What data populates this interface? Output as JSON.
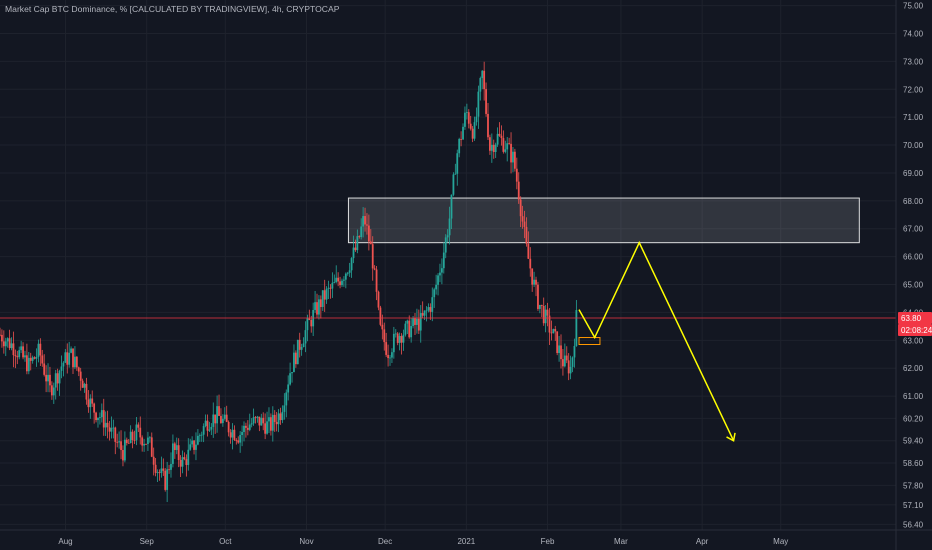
{
  "chart_data": {
    "type": "candlestick",
    "title": "Market Cap BTC Dominance, % [CALCULATED BY TRADINGVIEW], 4h, CRYPTOCAP",
    "ylim": [
      56.2,
      75.2
    ],
    "y_ticks": [
      "75.00",
      "74.00",
      "73.00",
      "72.00",
      "71.00",
      "70.00",
      "69.00",
      "68.00",
      "67.00",
      "66.00",
      "65.00",
      "64.00",
      "63.00",
      "62.00",
      "61.00",
      "60.20",
      "59.40",
      "58.60",
      "57.80",
      "57.10",
      "56.40"
    ],
    "x_ticks": [
      "Aug",
      "Sep",
      "Oct",
      "Nov",
      "Dec",
      "2021",
      "Feb",
      "Mar",
      "Apr",
      "May"
    ],
    "price_series": [
      {
        "date": "2020-07-07",
        "value": 63.2
      },
      {
        "date": "2020-07-12",
        "value": 62.8
      },
      {
        "date": "2020-07-18",
        "value": 62.1
      },
      {
        "date": "2020-07-22",
        "value": 62.6
      },
      {
        "date": "2020-07-26",
        "value": 61.2
      },
      {
        "date": "2020-07-31",
        "value": 62.2
      },
      {
        "date": "2020-08-03",
        "value": 62.5
      },
      {
        "date": "2020-08-07",
        "value": 61.7
      },
      {
        "date": "2020-08-11",
        "value": 60.6
      },
      {
        "date": "2020-08-16",
        "value": 60.1
      },
      {
        "date": "2020-08-20",
        "value": 59.4
      },
      {
        "date": "2020-08-23",
        "value": 59.0
      },
      {
        "date": "2020-08-28",
        "value": 59.7
      },
      {
        "date": "2020-09-02",
        "value": 59.3
      },
      {
        "date": "2020-09-05",
        "value": 58.4
      },
      {
        "date": "2020-09-08",
        "value": 57.9
      },
      {
        "date": "2020-09-11",
        "value": 59.1
      },
      {
        "date": "2020-09-15",
        "value": 58.6
      },
      {
        "date": "2020-09-20",
        "value": 59.4
      },
      {
        "date": "2020-09-24",
        "value": 60.1
      },
      {
        "date": "2020-09-28",
        "value": 60.3
      },
      {
        "date": "2020-10-02",
        "value": 59.9
      },
      {
        "date": "2020-10-06",
        "value": 59.6
      },
      {
        "date": "2020-10-10",
        "value": 60.0
      },
      {
        "date": "2020-10-14",
        "value": 60.1
      },
      {
        "date": "2020-10-18",
        "value": 59.9
      },
      {
        "date": "2020-10-22",
        "value": 60.4
      },
      {
        "date": "2020-10-26",
        "value": 62.0
      },
      {
        "date": "2020-10-30",
        "value": 63.0
      },
      {
        "date": "2020-11-04",
        "value": 64.0
      },
      {
        "date": "2020-11-08",
        "value": 64.6
      },
      {
        "date": "2020-11-12",
        "value": 65.0
      },
      {
        "date": "2020-11-16",
        "value": 65.5
      },
      {
        "date": "2020-11-20",
        "value": 66.3
      },
      {
        "date": "2020-11-23",
        "value": 67.4
      },
      {
        "date": "2020-11-26",
        "value": 66.1
      },
      {
        "date": "2020-11-29",
        "value": 63.4
      },
      {
        "date": "2020-12-02",
        "value": 62.6
      },
      {
        "date": "2020-12-06",
        "value": 63.2
      },
      {
        "date": "2020-12-10",
        "value": 63.4
      },
      {
        "date": "2020-12-15",
        "value": 63.7
      },
      {
        "date": "2020-12-19",
        "value": 64.4
      },
      {
        "date": "2020-12-23",
        "value": 66.0
      },
      {
        "date": "2020-12-26",
        "value": 67.6
      },
      {
        "date": "2020-12-28",
        "value": 69.5
      },
      {
        "date": "2021-01-01",
        "value": 71.2
      },
      {
        "date": "2021-01-04",
        "value": 70.4
      },
      {
        "date": "2021-01-07",
        "value": 72.6
      },
      {
        "date": "2021-01-10",
        "value": 69.9
      },
      {
        "date": "2021-01-13",
        "value": 70.3
      },
      {
        "date": "2021-01-16",
        "value": 70.0
      },
      {
        "date": "2021-01-19",
        "value": 69.5
      },
      {
        "date": "2021-01-21",
        "value": 68.3
      },
      {
        "date": "2021-01-24",
        "value": 66.2
      },
      {
        "date": "2021-01-28",
        "value": 64.5
      },
      {
        "date": "2021-02-01",
        "value": 63.6
      },
      {
        "date": "2021-02-04",
        "value": 63.0
      },
      {
        "date": "2021-02-07",
        "value": 62.2
      },
      {
        "date": "2021-02-10",
        "value": 62.0
      },
      {
        "date": "2021-02-12",
        "value": 63.8
      }
    ],
    "resistance_zone": {
      "from_date": "2020-11-17",
      "to_date": "2021-05-31",
      "low": 66.5,
      "high": 68.1
    },
    "current_price_line": 63.8,
    "projection_path": [
      {
        "date": "2021-02-13",
        "value": 64.1
      },
      {
        "date": "2021-02-19",
        "value": 63.1
      },
      {
        "date": "2021-03-08",
        "value": 66.5
      },
      {
        "date": "2021-04-13",
        "value": 59.4
      }
    ],
    "highlight_box": {
      "from_date": "2021-02-13",
      "to_date": "2021-02-21",
      "low": 62.85,
      "high": 63.1
    },
    "price_tags": [
      {
        "text": "63.80",
        "color": "#f23645"
      },
      {
        "text": "02:08:24",
        "color": "#f23645"
      }
    ],
    "colors": {
      "background": "#131722",
      "grid": "#1e222d",
      "up": "#26a69a",
      "down": "#ef5350",
      "zone": "#ffffff",
      "projection": "#ffff00",
      "current_line": "#f23645",
      "highlight_box": "#ff9800"
    }
  }
}
